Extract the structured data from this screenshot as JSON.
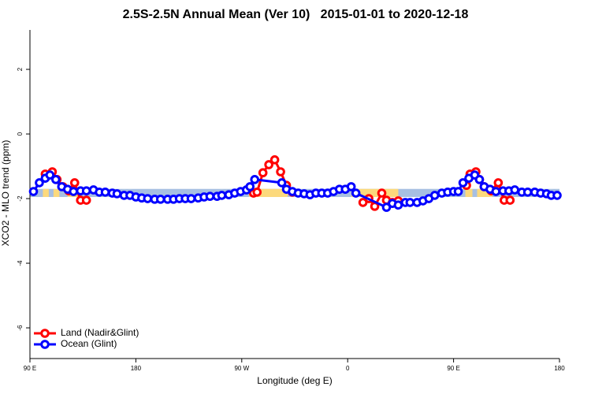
{
  "chart_data": {
    "type": "line",
    "title": "2.5S-2.5N Annual Mean (Ver 10)   2015-01-01 to 2020-12-18",
    "x_label": "Longitude (deg E)",
    "y_label": "XCO2 - MLO trend (ppm)",
    "xlim": [
      90,
      540
    ],
    "ylim": [
      -6.95,
      3.22
    ],
    "xticks": [
      {
        "value": 90,
        "label": "90 E"
      },
      {
        "value": 180,
        "label": "180"
      },
      {
        "value": 270,
        "label": "90 W"
      },
      {
        "value": 360,
        "label": "0"
      },
      {
        "value": 450,
        "label": "90 E"
      },
      {
        "value": 540,
        "label": "180"
      }
    ],
    "yticks": [
      -6,
      -4,
      -2,
      0,
      2
    ],
    "legend": "bottom-left",
    "band": {
      "ylim": [
        -1.95,
        -1.7
      ],
      "color": "#a7bfe2",
      "land_color": "#fcd97c",
      "land_spans": [
        [
          101,
          106
        ],
        [
          110,
          115
        ],
        [
          122,
          132
        ],
        [
          276,
          309
        ],
        [
          363,
          403
        ],
        [
          460,
          466
        ],
        [
          470,
          483
        ]
      ]
    },
    "series": [
      {
        "name": "Land (Nadir&Glint)",
        "color": "#ff0000",
        "x": [
          103,
          109,
          113,
          118,
          123,
          128,
          133,
          138,
          null,
          280,
          283,
          288,
          293,
          298,
          303,
          308,
          313,
          null,
          373,
          378,
          383,
          389,
          393,
          398,
          403,
          null,
          461,
          464,
          469,
          472,
          476,
          482,
          488,
          493,
          498
        ],
        "values": [
          -1.24,
          -1.17,
          -1.41,
          -1.63,
          -1.76,
          -1.51,
          -2.05,
          -2.05,
          null,
          -1.83,
          -1.8,
          -1.2,
          -0.95,
          -0.8,
          -1.17,
          -1.59,
          -1.8,
          null,
          -2.12,
          -2.0,
          -2.24,
          -1.83,
          -2.05,
          -2.12,
          -2.07,
          null,
          -1.59,
          -1.24,
          -1.17,
          -1.41,
          -1.63,
          -1.76,
          -1.51,
          -2.05,
          -2.05
        ]
      },
      {
        "name": "Ocean (Glint)",
        "color": "#0000ff",
        "x": [
          93,
          98,
          103,
          107,
          112,
          117,
          122,
          127,
          133,
          138,
          144,
          149,
          154,
          160,
          164,
          170,
          175,
          180,
          185,
          190,
          196,
          201,
          207,
          212,
          217,
          222,
          227,
          233,
          238,
          243,
          249,
          253,
          259,
          264,
          269,
          274,
          277,
          281,
          304,
          308,
          313,
          318,
          323,
          328,
          333,
          338,
          343,
          348,
          353,
          358,
          363,
          367,
          393,
          398,
          403,
          409,
          413,
          419,
          424,
          429,
          434,
          440,
          445,
          450,
          454,
          458,
          463,
          468,
          472,
          476,
          481,
          486,
          492,
          497,
          502,
          508,
          513,
          519,
          524,
          529,
          533,
          538
        ],
        "values": [
          -1.78,
          -1.51,
          -1.37,
          -1.27,
          -1.41,
          -1.63,
          -1.71,
          -1.78,
          -1.76,
          -1.76,
          -1.73,
          -1.8,
          -1.8,
          -1.83,
          -1.85,
          -1.9,
          -1.9,
          -1.95,
          -1.98,
          -2.0,
          -2.02,
          -2.02,
          -2.02,
          -2.02,
          -2.0,
          -2.0,
          -2.0,
          -1.98,
          -1.95,
          -1.93,
          -1.93,
          -1.9,
          -1.88,
          -1.83,
          -1.78,
          -1.73,
          -1.63,
          -1.41,
          -1.51,
          -1.71,
          -1.78,
          -1.83,
          -1.85,
          -1.88,
          -1.83,
          -1.83,
          -1.83,
          -1.78,
          -1.71,
          -1.71,
          -1.63,
          -1.83,
          -2.27,
          -2.15,
          -2.2,
          -2.12,
          -2.12,
          -2.12,
          -2.07,
          -2.0,
          -1.9,
          -1.83,
          -1.8,
          -1.78,
          -1.78,
          -1.51,
          -1.37,
          -1.27,
          -1.41,
          -1.63,
          -1.71,
          -1.78,
          -1.76,
          -1.76,
          -1.73,
          -1.8,
          -1.8,
          -1.8,
          -1.83,
          -1.85,
          -1.9,
          -1.9
        ]
      }
    ]
  }
}
